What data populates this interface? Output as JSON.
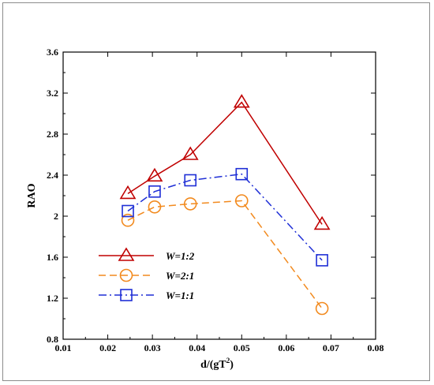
{
  "chart_data": {
    "type": "line",
    "xlabel_main": "d/(gT",
    "xlabel_sup": "2",
    "xlabel_tail": ")",
    "ylabel": "RAO",
    "xlim": [
      0.01,
      0.08
    ],
    "ylim": [
      0.8,
      3.6
    ],
    "xticks": [
      0.01,
      0.02,
      0.03,
      0.04,
      0.05,
      0.06,
      0.07,
      0.08
    ],
    "xtick_labels": [
      "0.01",
      "0.02",
      "0.03",
      "0.04",
      "0.05",
      "0.06",
      "0.07",
      "0.08"
    ],
    "yticks": [
      0.8,
      1.2,
      1.6,
      2.0,
      2.4,
      2.8,
      3.2,
      3.6
    ],
    "ytick_labels": [
      "0.8",
      "1.2",
      "1.6",
      "2",
      "2.4",
      "2.8",
      "3.2",
      "3.6"
    ],
    "grid": false,
    "legend_position": "lower-left",
    "series": [
      {
        "name": "W=1:2",
        "color": "#c00000",
        "dash": "solid",
        "marker": "triangle",
        "x": [
          0.0245,
          0.0305,
          0.0385,
          0.05,
          0.068
        ],
        "y": [
          2.22,
          2.39,
          2.6,
          3.11,
          1.92
        ]
      },
      {
        "name": "W=2:1",
        "color": "#f28a1e",
        "dash": "dashed",
        "marker": "circle",
        "x": [
          0.0245,
          0.0305,
          0.0385,
          0.05,
          0.068
        ],
        "y": [
          1.96,
          2.09,
          2.12,
          2.15,
          1.1
        ]
      },
      {
        "name": "W=1:1",
        "color": "#1f2fd6",
        "dash": "dashdot",
        "marker": "square",
        "x": [
          0.0245,
          0.0305,
          0.0385,
          0.05,
          0.068
        ],
        "y": [
          2.05,
          2.24,
          2.35,
          2.41,
          1.57
        ]
      }
    ]
  }
}
